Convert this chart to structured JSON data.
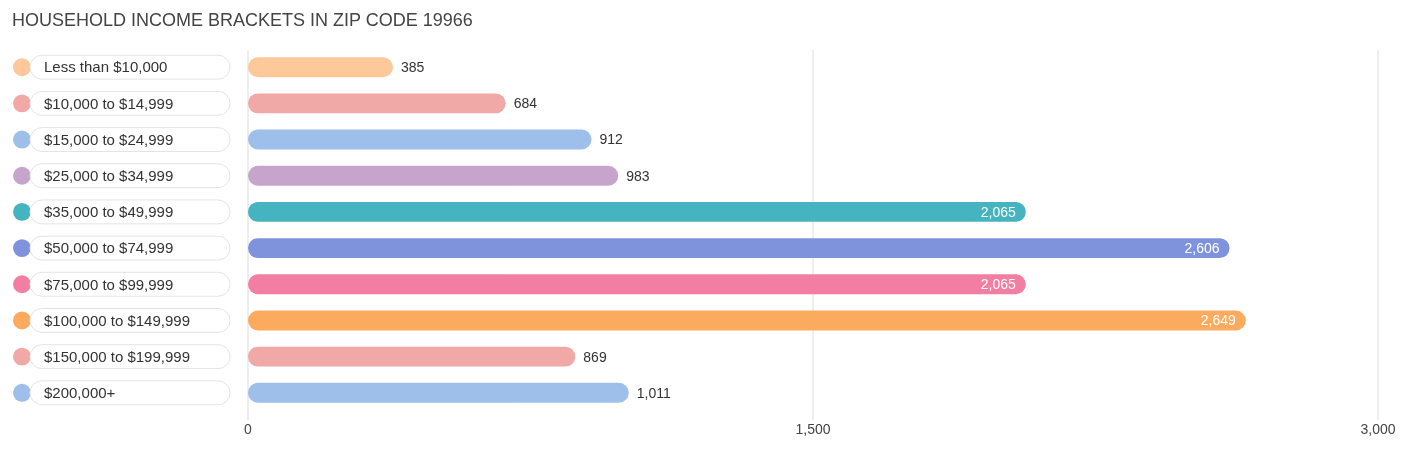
{
  "chart_data": {
    "type": "bar",
    "orientation": "horizontal",
    "title": "HOUSEHOLD INCOME BRACKETS IN ZIP CODE 19966",
    "categories": [
      "Less than $10,000",
      "$10,000 to $14,999",
      "$15,000 to $24,999",
      "$25,000 to $34,999",
      "$35,000 to $49,999",
      "$50,000 to $74,999",
      "$75,000 to $99,999",
      "$100,000 to $149,999",
      "$150,000 to $199,999",
      "$200,000+"
    ],
    "values": [
      385,
      684,
      912,
      983,
      2065,
      2606,
      2065,
      2649,
      869,
      1011
    ],
    "colors": [
      "#fdc89a",
      "#f0a9a6",
      "#9dbfe9",
      "#c6a4cb",
      "#45b3c0",
      "#7f93dc",
      "#f27fa3",
      "#fbaa5e",
      "#f0a9a6",
      "#9dbfe9"
    ],
    "xlim": [
      0,
      3000
    ],
    "xticks": [
      0,
      {
        "value": 1500,
        "label": "1,500"
      },
      {
        "value": 3000,
        "label": "3,000"
      }
    ],
    "value_labels": [
      "385",
      "684",
      "912",
      "983",
      "2,065",
      "2,606",
      "2,065",
      "2,649",
      "869",
      "1,011"
    ],
    "grid": "x"
  }
}
